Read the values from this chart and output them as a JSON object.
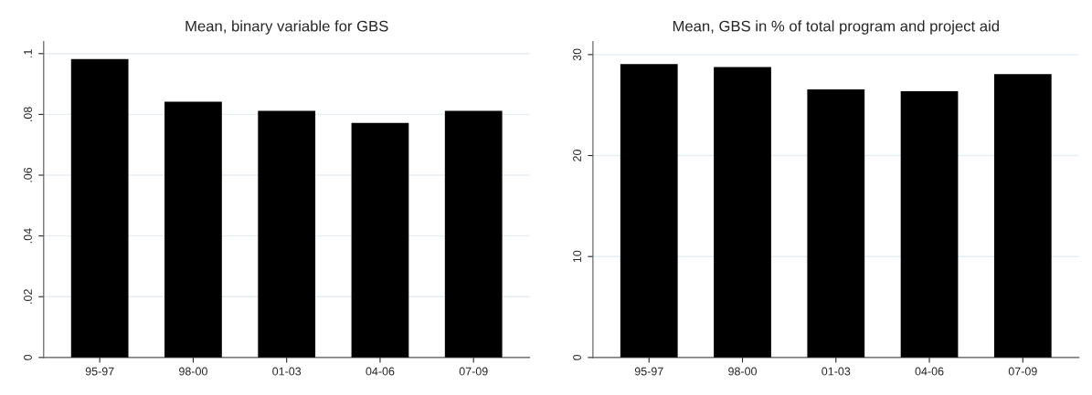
{
  "chart_data": [
    {
      "type": "bar",
      "title": "Mean, binary variable for GBS",
      "categories": [
        "95-97",
        "98-00",
        "01-03",
        "04-06",
        "07-09"
      ],
      "values": [
        0.098,
        0.084,
        0.081,
        0.077,
        0.081
      ],
      "color": "#000000",
      "ylim": [
        0,
        0.104
      ],
      "yticks": [
        {
          "value": 0,
          "label": "0"
        },
        {
          "value": 0.02,
          "label": ".02"
        },
        {
          "value": 0.04,
          "label": ".04"
        },
        {
          "value": 0.06,
          "label": ".06"
        },
        {
          "value": 0.08,
          "label": ".08"
        },
        {
          "value": 0.1,
          "label": ".1"
        }
      ],
      "grid": "y"
    },
    {
      "type": "bar",
      "title": "Mean, GBS in % of total program and project aid",
      "categories": [
        "95-97",
        "98-00",
        "01-03",
        "04-06",
        "07-09"
      ],
      "values": [
        29.0,
        28.7,
        26.5,
        26.3,
        28.0
      ],
      "color": "#000000",
      "ylim": [
        0,
        31.3
      ],
      "yticks": [
        0,
        10,
        20,
        30
      ],
      "grid": "y"
    }
  ]
}
